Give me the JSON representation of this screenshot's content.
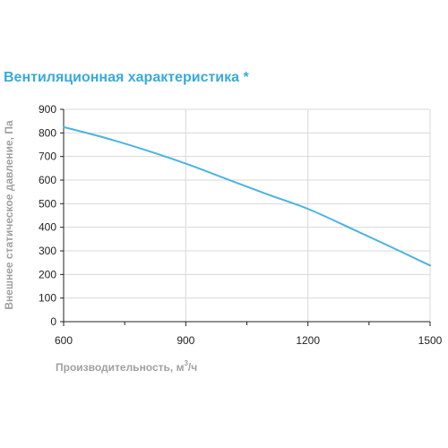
{
  "chart_data": {
    "type": "line",
    "title": "Вентиляционная характеристика *",
    "xlabel": "Производительность, м",
    "xlabel_sup": "3",
    "xlabel_suffix": "/ч",
    "ylabel": "Внешнее статическое давление, Па",
    "xlim": [
      600,
      1500
    ],
    "ylim": [
      0,
      900
    ],
    "x_ticks": [
      600,
      900,
      1200,
      1500
    ],
    "x_minor_ticks": [
      750,
      1050,
      1350
    ],
    "y_ticks": [
      0,
      100,
      200,
      300,
      400,
      500,
      600,
      700,
      800,
      900
    ],
    "grid": true,
    "line_color": "#4ab3e3",
    "title_color": "#3aa9dd",
    "series": [
      {
        "x": [
          600,
          700,
          800,
          900,
          1000,
          1100,
          1200,
          1300,
          1400,
          1500
        ],
        "values": [
          825,
          780,
          728,
          670,
          605,
          540,
          478,
          400,
          320,
          238
        ]
      }
    ]
  }
}
